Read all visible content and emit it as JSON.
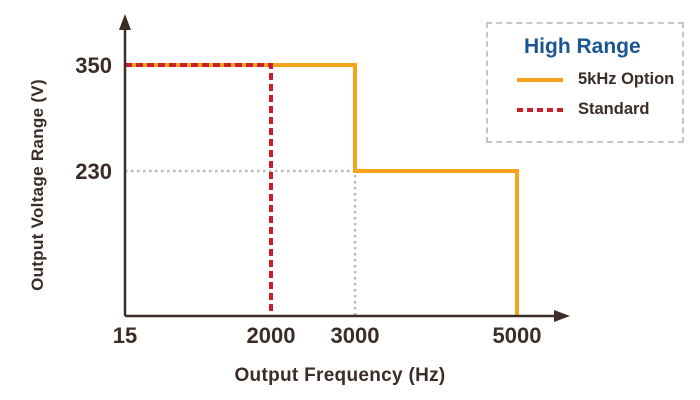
{
  "colors": {
    "accent_orange": "#f6a31c",
    "accent_red": "#cb1d2a",
    "legend_title_blue": "#1b5693",
    "axis_dark": "#3b2d28",
    "guide_gray": "#b9b9b9",
    "legend_border_gray": "#c6c6c6",
    "background": "#ffffff"
  },
  "legend": {
    "title": "High Range",
    "items": [
      {
        "label": "5kHz Option",
        "style": "solid",
        "color": "#f6a31c"
      },
      {
        "label": "Standard",
        "style": "dashed",
        "color": "#cb1d2a"
      }
    ]
  },
  "chart_data": {
    "type": "line",
    "title": "High Range",
    "xlabel": "Output Frequency (Hz)",
    "ylabel": "Output Voltage Range (V)",
    "xticks": [
      15,
      2000,
      3000,
      5000
    ],
    "yticks": [
      350,
      230
    ],
    "xlim": [
      15,
      5000
    ],
    "ylim": [
      0,
      400
    ],
    "grid": false,
    "legend_position": "top-right",
    "series": [
      {
        "name": "5kHz Option",
        "color": "#f6a31c",
        "dash": "solid",
        "points": [
          [
            15,
            350
          ],
          [
            3000,
            350
          ],
          [
            3000,
            230
          ],
          [
            5000,
            230
          ],
          [
            5000,
            0
          ]
        ]
      },
      {
        "name": "Standard",
        "color": "#cb1d2a",
        "dash": "dashed",
        "points": [
          [
            15,
            350
          ],
          [
            2000,
            350
          ],
          [
            2000,
            0
          ]
        ]
      }
    ],
    "guides": [
      {
        "name": "230V-3000Hz-reference",
        "color": "#b9b9b9",
        "dash": "dotted",
        "points": [
          [
            15,
            230
          ],
          [
            3000,
            230
          ],
          [
            3000,
            0
          ]
        ]
      }
    ]
  }
}
